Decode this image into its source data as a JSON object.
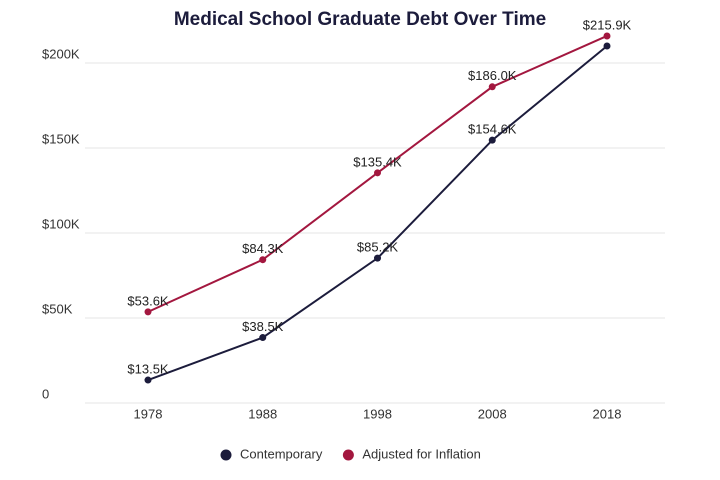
{
  "chart_data": {
    "type": "line",
    "title": "Medical School Graduate Debt Over Time",
    "categories": [
      "1978",
      "1988",
      "1998",
      "2008",
      "2018"
    ],
    "series": [
      {
        "name": "Contemporary",
        "color": "#1c1c3c",
        "values": [
          13500,
          38500,
          85200,
          154600,
          210000
        ],
        "value_labels": [
          "$13.5K",
          "$38.5K",
          "$85.2K",
          "$154.6K",
          null
        ]
      },
      {
        "name": "Adjusted for Inflation",
        "color": "#a3173f",
        "values": [
          53600,
          84300,
          135400,
          186000,
          215900
        ],
        "value_labels": [
          "$53.6K",
          "$84.3K",
          "$135.4K",
          "$186.0K",
          "$215.9K"
        ]
      }
    ],
    "ylim": [
      0,
      220000
    ],
    "yticks": [
      0,
      {
        "value": 50000,
        "label": "$50K"
      },
      {
        "value": 100000,
        "label": "$100K"
      },
      {
        "value": 150000,
        "label": "$150K"
      },
      {
        "value": 200000,
        "label": "$200K"
      }
    ],
    "grid": true,
    "legend": "bottom"
  }
}
